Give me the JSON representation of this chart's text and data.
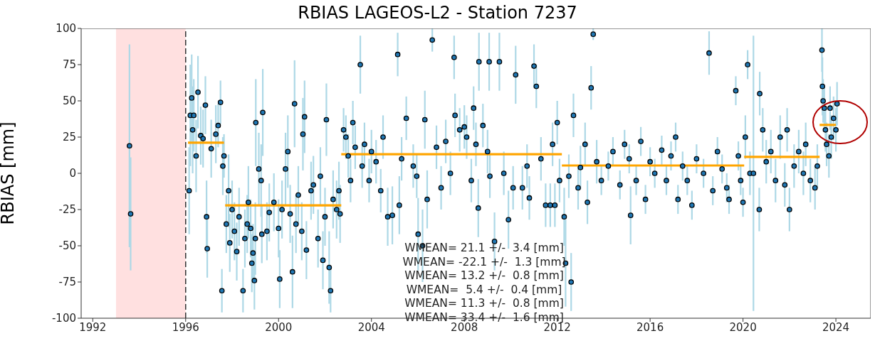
{
  "chart_data": {
    "type": "scatter",
    "title": "RBIAS LAGEOS-L2 - Station 7237",
    "ylabel": "RBIAS [mm]",
    "xlim": [
      1991.5,
      2025.5
    ],
    "xticks": [
      1992,
      1996,
      2000,
      2004,
      2008,
      2012,
      2016,
      2020,
      2024
    ],
    "ylim": [
      -100,
      100
    ],
    "yticks": [
      -100,
      -75,
      -50,
      -25,
      0,
      25,
      50,
      75,
      100
    ],
    "series": [
      {
        "color": "#1f77b4",
        "marker": "circle",
        "x": [
          1993.58,
          1993.63,
          1996.15,
          1996.2,
          1996.26,
          1996.3,
          1996.35,
          1996.45,
          1996.53,
          1996.65,
          1996.75,
          1996.85,
          1996.9,
          1996.93,
          1997.1,
          1997.3,
          1997.4,
          1997.5,
          1997.56,
          1997.6,
          1997.65,
          1997.75,
          1997.85,
          1997.9,
          1998.0,
          1998.1,
          1998.2,
          1998.3,
          1998.47,
          1998.55,
          1998.65,
          1998.7,
          1998.8,
          1998.85,
          1998.9,
          1998.96,
          1999.0,
          1999.02,
          1999.15,
          1999.25,
          1999.28,
          1999.32,
          1999.5,
          1999.6,
          1999.8,
          2000.0,
          2000.05,
          2000.15,
          2000.3,
          2000.4,
          2000.5,
          2000.6,
          2000.69,
          2000.75,
          2000.85,
          2001.0,
          2001.05,
          2001.12,
          2001.2,
          2001.4,
          2001.5,
          2001.7,
          2001.8,
          2001.91,
          2002.0,
          2002.06,
          2002.18,
          2002.24,
          2002.35,
          2002.5,
          2002.6,
          2002.65,
          2002.8,
          2002.9,
          2003.0,
          2003.1,
          2003.2,
          2003.3,
          2003.52,
          2003.6,
          2003.7,
          2003.9,
          2004.0,
          2004.2,
          2004.4,
          2004.5,
          2004.7,
          2004.9,
          2005.13,
          2005.2,
          2005.3,
          2005.5,
          2005.8,
          2005.95,
          2006.01,
          2006.2,
          2006.3,
          2006.4,
          2006.62,
          2006.8,
          2007.0,
          2007.2,
          2007.4,
          2007.56,
          2007.6,
          2007.8,
          2008.0,
          2008.1,
          2008.3,
          2008.4,
          2008.5,
          2008.6,
          2008.63,
          2008.8,
          2009.0,
          2009.07,
          2009.1,
          2009.3,
          2009.51,
          2009.7,
          2009.9,
          2010.1,
          2010.21,
          2010.5,
          2010.7,
          2010.8,
          2011.0,
          2011.1,
          2011.3,
          2011.5,
          2011.7,
          2011.8,
          2011.9,
          2012.0,
          2012.1,
          2012.3,
          2012.36,
          2012.5,
          2012.6,
          2012.7,
          2012.9,
          2013.0,
          2013.2,
          2013.3,
          2013.46,
          2013.55,
          2013.7,
          2013.9,
          2014.2,
          2014.4,
          2014.7,
          2014.9,
          2015.1,
          2015.16,
          2015.4,
          2015.6,
          2015.8,
          2016.0,
          2016.2,
          2016.5,
          2016.7,
          2016.9,
          2017.1,
          2017.2,
          2017.4,
          2017.6,
          2017.8,
          2018.0,
          2018.3,
          2018.54,
          2018.7,
          2018.9,
          2019.1,
          2019.3,
          2019.4,
          2019.69,
          2019.8,
          2019.9,
          2020.0,
          2020.1,
          2020.2,
          2020.3,
          2020.45,
          2020.7,
          2020.72,
          2020.85,
          2021.0,
          2021.2,
          2021.4,
          2021.6,
          2021.8,
          2021.9,
          2022.0,
          2022.2,
          2022.4,
          2022.6,
          2022.7,
          2022.9,
          2023.1,
          2023.2,
          2023.4,
          2023.42,
          2023.45,
          2023.5,
          2023.55,
          2023.6,
          2023.7,
          2023.75,
          2023.8,
          2023.9,
          2024.0,
          2024.05
        ],
        "values": [
          19,
          -28,
          -12,
          40,
          52,
          30,
          40,
          12,
          56,
          26,
          24,
          47,
          -30,
          -52,
          17,
          27,
          33,
          49,
          -81,
          5,
          12,
          -35,
          -12,
          -48,
          -25,
          -40,
          -54,
          -30,
          -81,
          -45,
          -35,
          -20,
          -38,
          -62,
          -55,
          -74,
          -45,
          35,
          3,
          -5,
          -42,
          42,
          -40,
          -27,
          -20,
          -38,
          -73,
          -25,
          3,
          15,
          -28,
          -68,
          48,
          -35,
          -15,
          -40,
          27,
          39,
          -53,
          -12,
          -8,
          -45,
          -2,
          -60,
          -30,
          37,
          -65,
          -81,
          -18,
          -25,
          -12,
          -28,
          30,
          25,
          12,
          -5,
          35,
          18,
          75,
          5,
          20,
          -5,
          15,
          8,
          -12,
          25,
          -30,
          -29,
          82,
          -22,
          10,
          38,
          5,
          -2,
          -42,
          -50,
          37,
          -18,
          92,
          18,
          -10,
          22,
          0,
          80,
          40,
          30,
          32,
          25,
          -5,
          45,
          20,
          -24,
          77,
          33,
          15,
          77,
          -2,
          -47,
          77,
          0,
          -32,
          -10,
          68,
          -10,
          5,
          -17,
          74,
          60,
          10,
          -22,
          -22,
          20,
          -22,
          35,
          -5,
          -30,
          -62,
          -2,
          -75,
          40,
          -10,
          4,
          20,
          -20,
          59,
          96,
          8,
          -5,
          5,
          15,
          -8,
          20,
          10,
          -29,
          -5,
          22,
          -18,
          8,
          0,
          16,
          -5,
          12,
          25,
          -18,
          5,
          -5,
          -22,
          10,
          0,
          83,
          -12,
          15,
          3,
          -10,
          -18,
          57,
          12,
          -5,
          -20,
          25,
          75,
          0,
          0,
          -25,
          55,
          30,
          8,
          15,
          -5,
          25,
          -8,
          30,
          -25,
          5,
          15,
          0,
          20,
          -5,
          -10,
          5,
          85,
          60,
          50,
          45,
          30,
          20,
          12,
          45,
          25,
          38,
          30,
          48
        ],
        "errors": [
          70,
          39,
          30,
          35,
          30,
          30,
          25,
          25,
          25,
          20,
          20,
          20,
          25,
          20,
          20,
          20,
          15,
          15,
          15,
          20,
          15,
          20,
          25,
          20,
          20,
          20,
          20,
          20,
          15,
          20,
          20,
          25,
          20,
          20,
          20,
          20,
          25,
          30,
          25,
          25,
          20,
          30,
          20,
          20,
          20,
          20,
          20,
          20,
          25,
          25,
          20,
          25,
          30,
          20,
          20,
          20,
          25,
          25,
          20,
          20,
          20,
          20,
          20,
          20,
          20,
          25,
          25,
          15,
          20,
          20,
          20,
          20,
          15,
          15,
          15,
          15,
          15,
          15,
          20,
          15,
          15,
          15,
          15,
          15,
          15,
          15,
          20,
          20,
          15,
          20,
          15,
          15,
          15,
          15,
          25,
          25,
          20,
          20,
          8,
          15,
          15,
          15,
          15,
          15,
          15,
          15,
          15,
          15,
          15,
          15,
          15,
          20,
          20,
          15,
          15,
          20,
          15,
          20,
          20,
          15,
          20,
          15,
          20,
          15,
          15,
          15,
          15,
          15,
          15,
          15,
          15,
          15,
          15,
          15,
          15,
          20,
          30,
          15,
          20,
          15,
          15,
          15,
          15,
          15,
          15,
          4,
          15,
          10,
          10,
          10,
          10,
          10,
          10,
          20,
          10,
          10,
          10,
          10,
          10,
          10,
          10,
          10,
          10,
          10,
          10,
          10,
          10,
          10,
          10,
          15,
          10,
          10,
          10,
          10,
          10,
          10,
          10,
          10,
          10,
          15,
          10,
          15,
          95,
          15,
          15,
          15,
          15,
          15,
          15,
          15,
          15,
          15,
          15,
          15,
          15,
          15,
          15,
          15,
          15,
          15,
          15,
          20,
          15,
          15,
          15,
          15,
          15,
          15,
          15,
          15,
          15,
          15
        ]
      },
      {
        "type": "line",
        "color": "#ffa500",
        "marker": "none",
        "x": [
          1996.1,
          1997.65
        ],
        "values": [
          21.1,
          21.1
        ]
      },
      {
        "type": "line",
        "color": "#ffa500",
        "marker": "none",
        "x": [
          1997.7,
          2002.7
        ],
        "values": [
          -22.1,
          -22.1
        ]
      },
      {
        "type": "line",
        "color": "#ffa500",
        "marker": "none",
        "x": [
          2002.7,
          2012.2
        ],
        "values": [
          13.2,
          13.2
        ]
      },
      {
        "type": "line",
        "color": "#ffa500",
        "marker": "none",
        "x": [
          2012.2,
          2020.05
        ],
        "values": [
          5.4,
          5.4
        ]
      },
      {
        "type": "line",
        "color": "#ffa500",
        "marker": "none",
        "x": [
          2020.05,
          2023.3
        ],
        "values": [
          11.3,
          11.3
        ]
      },
      {
        "type": "line",
        "color": "#ffa500",
        "marker": "none",
        "x": [
          2023.3,
          2024.0
        ],
        "values": [
          33.4,
          33.4
        ]
      }
    ],
    "bands": [
      {
        "axis": "x",
        "from": 1993,
        "to": 1996,
        "color": "#ffe0e0"
      }
    ],
    "ref_lines": [
      {
        "axis": "x",
        "value": 1996,
        "color": "#333333",
        "line_style": "dashed"
      }
    ],
    "annotations": [
      "WMEAN= 21.1 +/-  3.4 [mm]",
      "WMEAN= -22.1 +/-  1.3 [mm]",
      "WMEAN= 13.2 +/-  0.8 [mm]",
      "WMEAN=  5.4 +/-  0.4 [mm]",
      "WMEAN= 11.3 +/-  0.8 [mm]",
      "WMEAN= 33.4 +/-  1.6 [mm]"
    ]
  }
}
